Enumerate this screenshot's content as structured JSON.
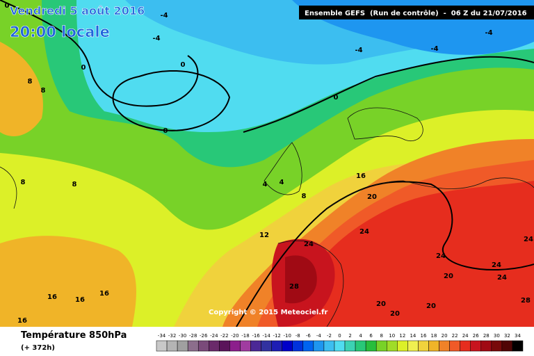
{
  "title": "Vendredi 5 août 2016",
  "subtitle": "20:00 locale",
  "header": "Ensemble GEFS  (Run de contrôle)  -  06 Z du 21/07/2016",
  "copyright": "Copyright © 2015 Meteociel.fr",
  "variable": "Température 850hPa",
  "lead_time": "(+ 372h)",
  "contour_labels": [
    "0",
    "-4",
    "-4",
    "0",
    "0",
    "8",
    "8",
    "0",
    "-4",
    "-4",
    "-4",
    "0",
    "8",
    "8",
    "4",
    "4",
    "8",
    "16",
    "20",
    "12",
    "24",
    "24",
    "24",
    "24",
    "24",
    "20",
    "28",
    "20",
    "20",
    "20",
    "28",
    "16",
    "16",
    "16",
    "16",
    "24"
  ],
  "legend": {
    "labels": [
      -34,
      -32,
      -30,
      -28,
      -26,
      -24,
      -22,
      -20,
      -18,
      -16,
      -14,
      -12,
      -10,
      -8,
      -6,
      -4,
      -2,
      0,
      2,
      4,
      6,
      8,
      10,
      12,
      14,
      16,
      18,
      20,
      22,
      24,
      26,
      28,
      30,
      32,
      34
    ],
    "colors": [
      "#c8c8c8",
      "#b4b4b4",
      "#a0a0a0",
      "#8c6e8c",
      "#7a4a7a",
      "#6a2a6a",
      "#5a145a",
      "#8c1e8c",
      "#a03ca0",
      "#4b2896",
      "#3232a0",
      "#1e1eb4",
      "#0000c8",
      "#0032dc",
      "#0064f0",
      "#1e96f0",
      "#3cbef0",
      "#50dcf0",
      "#3cd2b4",
      "#28c878",
      "#28be3c",
      "#78d228",
      "#a0dc28",
      "#dcf028",
      "#f0f050",
      "#f0d23c",
      "#f0b428",
      "#f08228",
      "#f05a28",
      "#e62d1e",
      "#c8141e",
      "#a00a14",
      "#780a0a",
      "#500505",
      "#000000"
    ]
  }
}
